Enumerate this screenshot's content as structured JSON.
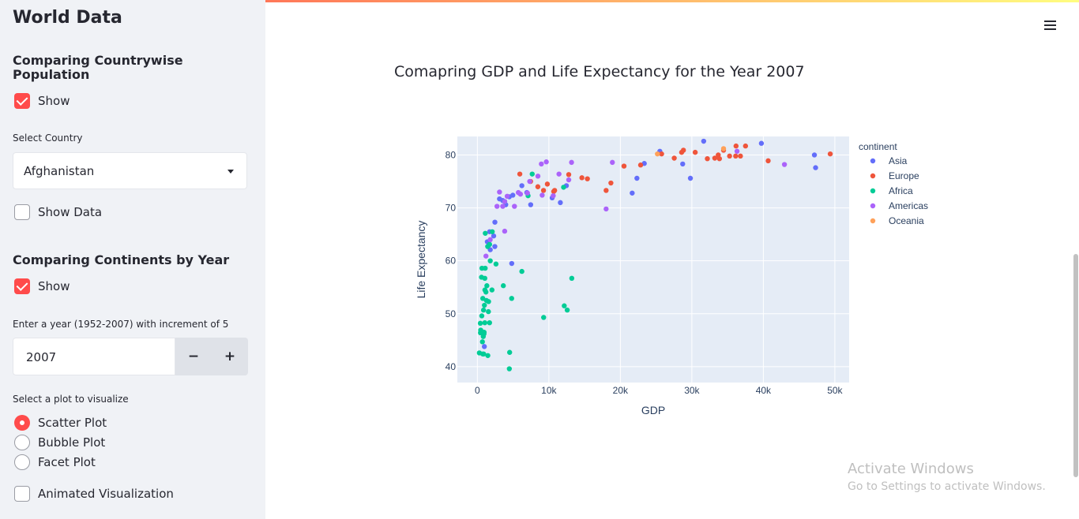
{
  "sidebar": {
    "title": "World Data",
    "section1": {
      "heading": "Comparing Countrywise Population",
      "show_label": "Show",
      "select_label": "Select Country",
      "select_value": "Afghanistan",
      "show_data_label": "Show Data"
    },
    "section2": {
      "heading": "Comparing Continents by Year",
      "show_label": "Show",
      "year_label": "Enter a year (1952-2007) with increment of 5",
      "year_value": "2007",
      "minus_label": "−",
      "plus_label": "+",
      "plot_label": "Select a plot to visualize",
      "plot_options": [
        "Scatter Plot",
        "Bubble Plot",
        "Facet Plot"
      ],
      "selected_plot": "Scatter Plot",
      "animated_label": "Animated Visualization"
    }
  },
  "main": {
    "chart_title": "Comapring GDP and Life Expectancy for the Year 2007"
  },
  "watermark": {
    "line1": "Activate Windows",
    "line2": "Go to Settings to activate Windows."
  },
  "colors": {
    "accent": "#ff4b4b",
    "Asia": "#636efa",
    "Europe": "#ef553b",
    "Africa": "#00cc96",
    "Americas": "#ab63fa",
    "Oceania": "#ffa15a",
    "plot_bg": "#e5ecf6"
  },
  "chart_data": {
    "type": "scatter",
    "xlabel": "GDP",
    "ylabel": "Life Expectancy",
    "xlim": [
      -2800,
      52000
    ],
    "ylim": [
      37,
      83.5
    ],
    "xticks": [
      0,
      10000,
      20000,
      30000,
      40000,
      50000
    ],
    "xtick_labels": [
      "0",
      "10k",
      "20k",
      "30k",
      "40k",
      "50k"
    ],
    "yticks": [
      40,
      50,
      60,
      70,
      80
    ],
    "ytick_labels": [
      "40",
      "50",
      "60",
      "70",
      "80"
    ],
    "grid": true,
    "legend_title": "continent",
    "legend_position": "top-right outside",
    "series": [
      {
        "name": "Asia",
        "points": [
          [
            975,
            43.8
          ],
          [
            1391,
            63.6
          ],
          [
            1714,
            65.5
          ],
          [
            1803,
            62.1
          ],
          [
            2281,
            64.7
          ],
          [
            2452,
            67.3
          ],
          [
            3096,
            71.7
          ],
          [
            3541,
            71.4
          ],
          [
            3970,
            70.6
          ],
          [
            4471,
            72.1
          ],
          [
            4959,
            72.4
          ],
          [
            6223,
            74.2
          ],
          [
            6917,
            72.9
          ],
          [
            7458,
            70.6
          ],
          [
            10461,
            71.9
          ],
          [
            11606,
            71.0
          ],
          [
            12452,
            74.2
          ],
          [
            21655,
            72.8
          ],
          [
            22316,
            75.6
          ],
          [
            23348,
            78.4
          ],
          [
            25523,
            80.7
          ],
          [
            28718,
            78.3
          ],
          [
            29796,
            75.6
          ],
          [
            31656,
            82.6
          ],
          [
            39725,
            82.2
          ],
          [
            47143,
            80.0
          ],
          [
            47307,
            77.6
          ],
          [
            2442,
            62.7
          ],
          [
            4809,
            59.5
          ]
        ]
      },
      {
        "name": "Europe",
        "points": [
          [
            5937,
            76.4
          ],
          [
            7446,
            75.0
          ],
          [
            8459,
            74.0
          ],
          [
            9253,
            73.3
          ],
          [
            9787,
            74.5
          ],
          [
            10808,
            73.3
          ],
          [
            12779,
            76.3
          ],
          [
            14619,
            75.7
          ],
          [
            15390,
            75.5
          ],
          [
            18009,
            73.3
          ],
          [
            18678,
            74.7
          ],
          [
            20510,
            77.9
          ],
          [
            22833,
            78.1
          ],
          [
            25768,
            80.2
          ],
          [
            27538,
            79.4
          ],
          [
            28570,
            80.5
          ],
          [
            28821,
            80.9
          ],
          [
            30470,
            80.5
          ],
          [
            32170,
            79.3
          ],
          [
            33207,
            79.4
          ],
          [
            33693,
            80.0
          ],
          [
            33860,
            79.3
          ],
          [
            35278,
            79.8
          ],
          [
            36126,
            79.8
          ],
          [
            36181,
            81.7
          ],
          [
            36798,
            79.8
          ],
          [
            37506,
            81.7
          ],
          [
            40676,
            78.9
          ],
          [
            49357,
            80.2
          ],
          [
            34435,
            80.9
          ],
          [
            10681,
            73.1
          ]
        ]
      },
      {
        "name": "Africa",
        "points": [
          [
            278,
            42.6
          ],
          [
            414,
            48.2
          ],
          [
            430,
            46.4
          ],
          [
            470,
            46.9
          ],
          [
            579,
            56.9
          ],
          [
            620,
            49.6
          ],
          [
            641,
            58.6
          ],
          [
            706,
            44.7
          ],
          [
            753,
            42.4
          ],
          [
            759,
            52.9
          ],
          [
            824,
            45.7
          ],
          [
            863,
            50.7
          ],
          [
            883,
            42.4
          ],
          [
            926,
            46.2
          ],
          [
            943,
            46.5
          ],
          [
            986,
            51.6
          ],
          [
            1042,
            48.3
          ],
          [
            1044,
            56.7
          ],
          [
            1056,
            54.5
          ],
          [
            1091,
            58.6
          ],
          [
            1107,
            65.2
          ],
          [
            1200,
            54.1
          ],
          [
            1271,
            52.5
          ],
          [
            1328,
            55.3
          ],
          [
            1441,
            62.7
          ],
          [
            1464,
            42.1
          ],
          [
            1545,
            50.4
          ],
          [
            1569,
            52.3
          ],
          [
            1704,
            48.3
          ],
          [
            1712,
            63.1
          ],
          [
            2042,
            54.5
          ],
          [
            2082,
            65.5
          ],
          [
            2605,
            59.4
          ],
          [
            3632,
            55.3
          ],
          [
            4513,
            42.7
          ],
          [
            4797,
            52.9
          ],
          [
            6223,
            58.0
          ],
          [
            7092,
            72.3
          ],
          [
            7670,
            76.4
          ],
          [
            9270,
            49.3
          ],
          [
            12057,
            73.9
          ],
          [
            12154,
            51.5
          ],
          [
            12570,
            50.7
          ],
          [
            13206,
            56.7
          ],
          [
            4471,
            39.6
          ],
          [
            3820,
            71.2
          ],
          [
            1803,
            60.0
          ]
        ]
      },
      {
        "name": "Americas",
        "points": [
          [
            1202,
            60.9
          ],
          [
            2749,
            70.3
          ],
          [
            3548,
            70.3
          ],
          [
            3820,
            71.2
          ],
          [
            4173,
            72.2
          ],
          [
            5728,
            72.9
          ],
          [
            6025,
            72.6
          ],
          [
            7008,
            72.8
          ],
          [
            7321,
            75.0
          ],
          [
            8948,
            78.3
          ],
          [
            9065,
            72.4
          ],
          [
            9645,
            78.7
          ],
          [
            10611,
            72.3
          ],
          [
            11416,
            76.4
          ],
          [
            12779,
            75.3
          ],
          [
            13172,
            78.6
          ],
          [
            18009,
            69.8
          ],
          [
            18883,
            78.6
          ],
          [
            36319,
            80.7
          ],
          [
            42952,
            78.2
          ],
          [
            5186,
            70.3
          ],
          [
            3822,
            65.6
          ],
          [
            3096,
            73.0
          ],
          [
            1800,
            64.0
          ],
          [
            8470,
            76.0
          ]
        ]
      },
      {
        "name": "Oceania",
        "points": [
          [
            25185,
            80.2
          ],
          [
            34435,
            81.2
          ]
        ]
      }
    ]
  }
}
